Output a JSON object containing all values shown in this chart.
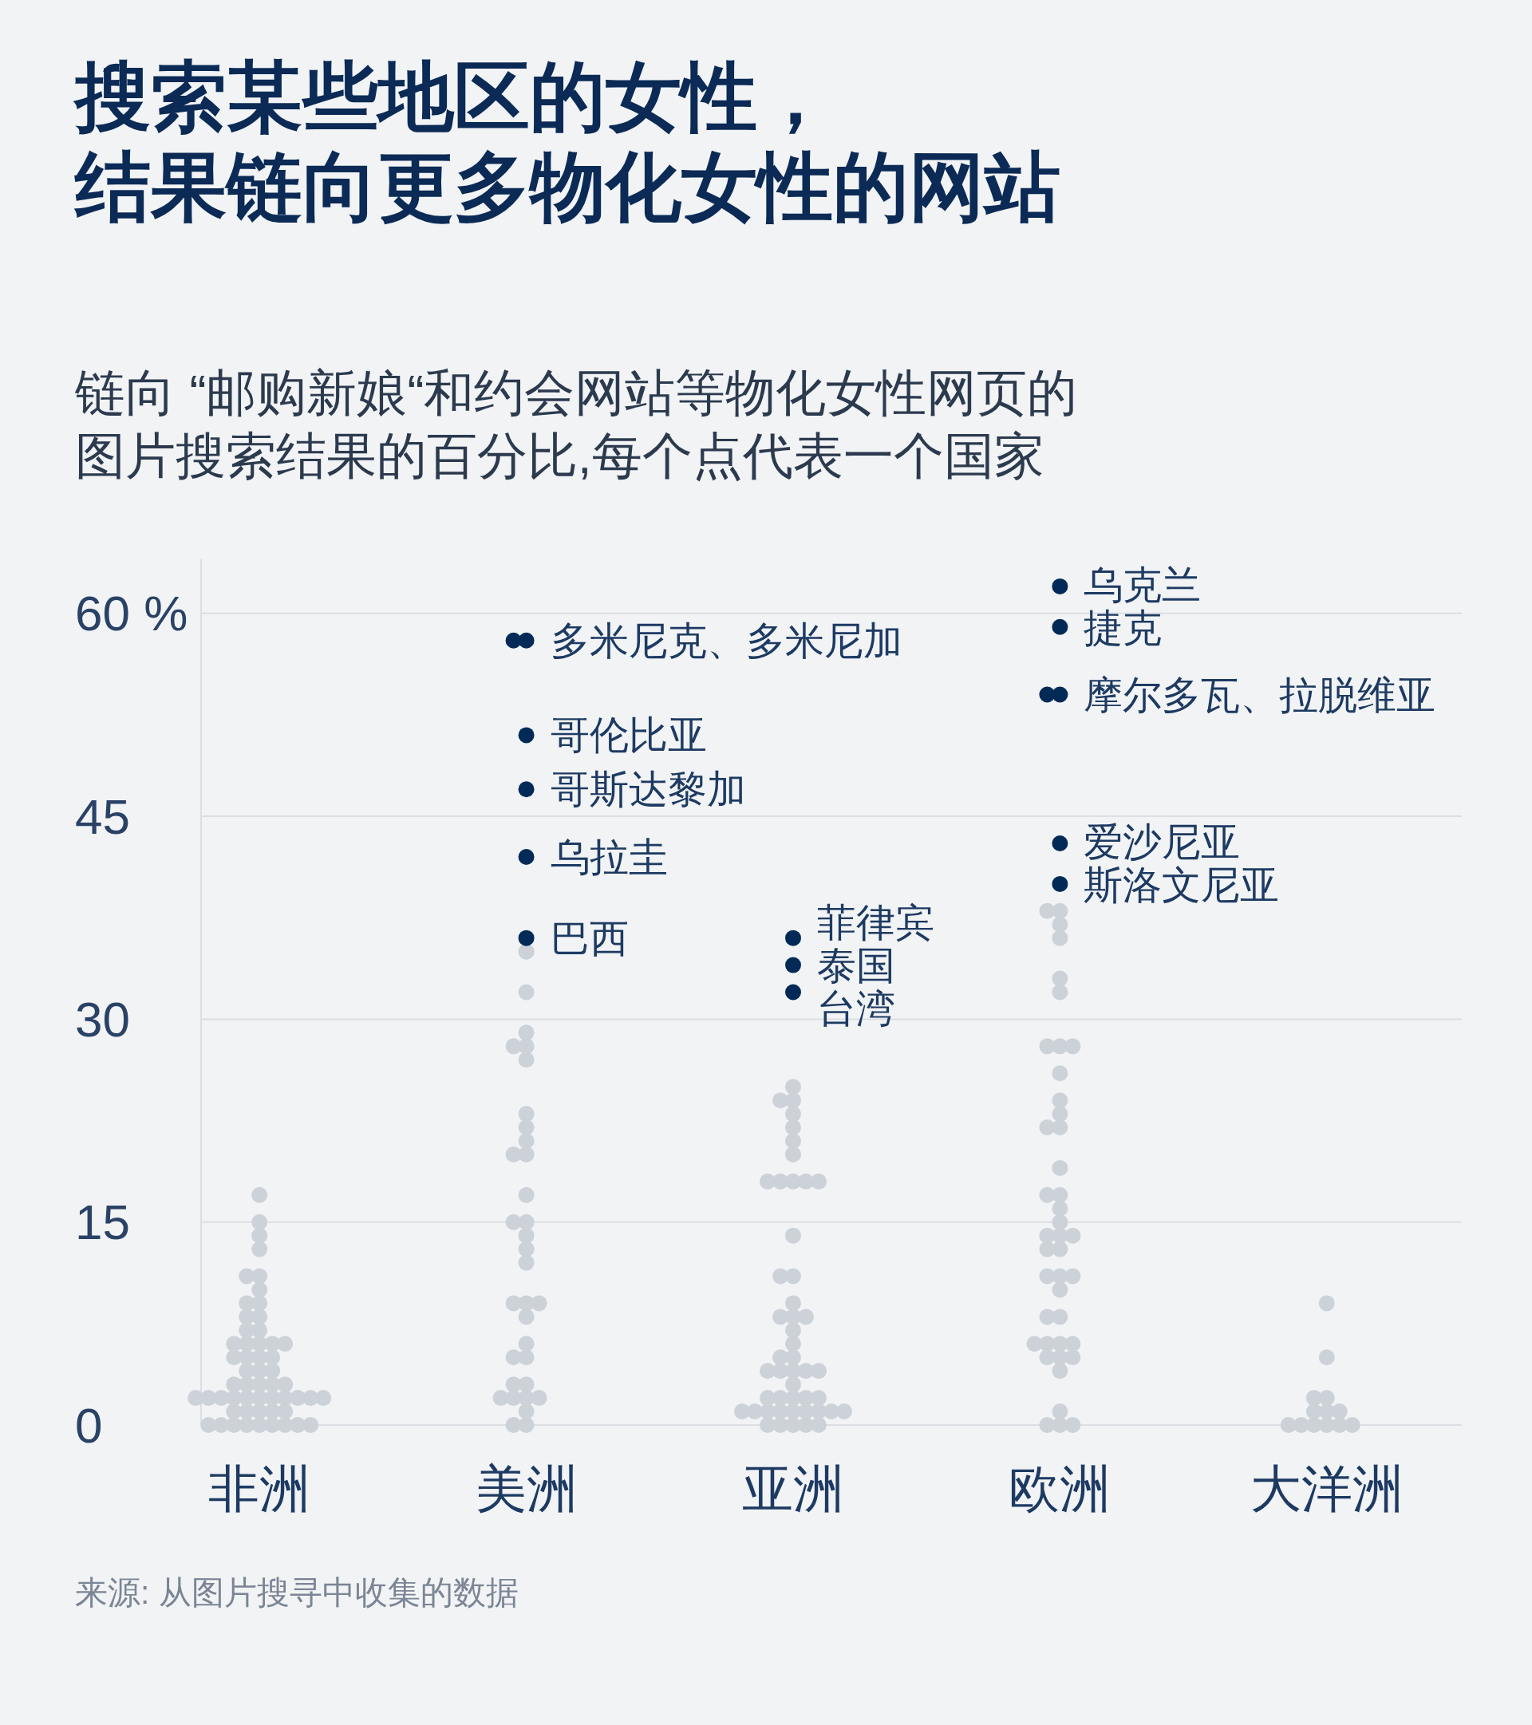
{
  "chart_data": {
    "type": "scatter",
    "title": "搜索某些地区的女性，结果链向更多物化女性的网站",
    "subtitle": "链向 “邮购新娘“和约会网站等物化女性网页的图片搜索结果的百分比,每个点代表一个国家",
    "categories": [
      "非洲",
      "美洲",
      "亚洲",
      "欧洲",
      "大洋洲"
    ],
    "series": [
      {
        "color": "#ccd2d8",
        "x": [
          "非洲",
          "非洲",
          "非洲",
          "非洲",
          "非洲",
          "非洲",
          "非洲",
          "非洲",
          "非洲",
          "非洲",
          "非洲",
          "非洲",
          "非洲",
          "非洲",
          "非洲",
          "非洲",
          "非洲",
          "非洲",
          "非洲",
          "非洲",
          "非洲",
          "非洲",
          "非洲",
          "非洲",
          "非洲",
          "非洲",
          "非洲",
          "非洲",
          "非洲",
          "非洲",
          "非洲",
          "非洲",
          "非洲",
          "非洲",
          "非洲",
          "非洲",
          "非洲",
          "非洲",
          "非洲",
          "非洲",
          "非洲",
          "非洲",
          "非洲",
          "非洲",
          "非洲",
          "非洲",
          "非洲",
          "非洲",
          "非洲",
          "非洲",
          "非洲",
          "非洲",
          "非洲",
          "非洲",
          "非洲",
          "美洲",
          "美洲",
          "美洲",
          "美洲",
          "美洲",
          "美洲",
          "美洲",
          "美洲",
          "美洲",
          "美洲",
          "美洲",
          "美洲",
          "美洲",
          "美洲",
          "美洲",
          "美洲",
          "美洲",
          "美洲",
          "美洲",
          "美洲",
          "美洲",
          "美洲",
          "美洲",
          "美洲",
          "美洲",
          "美洲",
          "美洲",
          "美洲",
          "美洲",
          "美洲",
          "美洲",
          "美洲",
          "美洲",
          "亚洲",
          "亚洲",
          "亚洲",
          "亚洲",
          "亚洲",
          "亚洲",
          "亚洲",
          "亚洲",
          "亚洲",
          "亚洲",
          "亚洲",
          "亚洲",
          "亚洲",
          "亚洲",
          "亚洲",
          "亚洲",
          "亚洲",
          "亚洲",
          "亚洲",
          "亚洲",
          "亚洲",
          "亚洲",
          "亚洲",
          "亚洲",
          "亚洲",
          "亚洲",
          "亚洲",
          "亚洲",
          "亚洲",
          "亚洲",
          "亚洲",
          "亚洲",
          "亚洲",
          "亚洲",
          "亚洲",
          "亚洲",
          "亚洲",
          "亚洲",
          "亚洲",
          "亚洲",
          "亚洲",
          "亚洲",
          "亚洲",
          "亚洲",
          "亚洲",
          "亚洲",
          "亚洲",
          "亚洲",
          "欧洲",
          "欧洲",
          "欧洲",
          "欧洲",
          "欧洲",
          "欧洲",
          "欧洲",
          "欧洲",
          "欧洲",
          "欧洲",
          "欧洲",
          "欧洲",
          "欧洲",
          "欧洲",
          "欧洲",
          "欧洲",
          "欧洲",
          "欧洲",
          "欧洲",
          "欧洲",
          "欧洲",
          "欧洲",
          "欧洲",
          "欧洲",
          "欧洲",
          "欧洲",
          "欧洲",
          "欧洲",
          "欧洲",
          "欧洲",
          "欧洲",
          "欧洲",
          "欧洲",
          "欧洲",
          "欧洲",
          "欧洲",
          "欧洲",
          "欧洲",
          "欧洲",
          "欧洲",
          "欧洲",
          "欧洲",
          "大洋洲",
          "大洋洲",
          "大洋洲",
          "大洋洲",
          "大洋洲",
          "大洋洲",
          "大洋洲",
          "大洋洲",
          "大洋洲",
          "大洋洲",
          "大洋洲",
          "大洋洲",
          "大洋洲"
        ],
        "values": [
          0,
          0,
          0,
          0,
          0,
          0,
          0,
          0,
          0,
          1,
          1,
          1,
          1,
          1,
          2,
          2,
          2,
          2,
          2,
          2,
          2,
          2,
          2,
          2,
          2,
          3,
          3,
          3,
          3,
          3,
          4,
          4,
          4,
          5,
          5,
          5,
          5,
          6,
          6,
          6,
          6,
          6,
          7,
          7,
          8,
          8,
          9,
          9,
          10,
          11,
          11,
          13,
          14,
          15,
          17,
          0,
          0,
          1,
          2,
          2,
          2,
          2,
          3,
          3,
          5,
          5,
          6,
          8,
          9,
          9,
          9,
          12,
          13,
          14,
          15,
          15,
          17,
          20,
          20,
          21,
          22,
          23,
          27,
          28,
          28,
          29,
          32,
          35,
          0,
          0,
          0,
          0,
          0,
          1,
          1,
          1,
          1,
          1,
          1,
          1,
          1,
          1,
          2,
          2,
          2,
          2,
          2,
          3,
          4,
          4,
          4,
          4,
          4,
          5,
          5,
          6,
          7,
          8,
          8,
          8,
          9,
          11,
          11,
          14,
          18,
          18,
          18,
          18,
          18,
          20,
          21,
          22,
          23,
          24,
          24,
          25,
          0,
          0,
          0,
          1,
          4,
          5,
          5,
          5,
          6,
          6,
          6,
          6,
          8,
          8,
          10,
          11,
          11,
          11,
          13,
          13,
          14,
          14,
          14,
          15,
          16,
          17,
          17,
          19,
          22,
          22,
          23,
          24,
          26,
          28,
          28,
          28,
          32,
          33,
          36,
          37,
          38,
          38,
          0,
          0,
          0,
          0,
          0,
          0,
          1,
          1,
          1,
          2,
          2,
          5,
          9
        ]
      },
      {
        "color": "#022a56",
        "x": [
          "美洲",
          "美洲",
          "美洲",
          "美洲",
          "美洲",
          "美洲",
          "亚洲",
          "亚洲",
          "亚洲",
          "欧洲",
          "欧洲",
          "欧洲",
          "欧洲",
          "欧洲",
          "欧洲"
        ],
        "values": [
          58,
          58,
          51,
          47,
          42,
          36,
          36,
          34,
          32,
          62,
          59,
          54,
          54,
          43,
          40
        ]
      }
    ],
    "ylim": [
      0,
      64
    ],
    "yticks": [
      0,
      15,
      30,
      45,
      {
        "value": 60,
        "label": "60 %"
      }
    ],
    "grid": "y",
    "marker": "circle",
    "annotations": [
      {
        "text": "多米尼克、多米尼加",
        "x": "美洲",
        "y": 58
      },
      {
        "text": "哥伦比亚",
        "x": "美洲",
        "y": 51
      },
      {
        "text": "哥斯达黎加",
        "x": "美洲",
        "y": 47
      },
      {
        "text": "乌拉圭",
        "x": "美洲",
        "y": 42
      },
      {
        "text": "巴西",
        "x": "美洲",
        "y": 36
      },
      {
        "text": "菲律宾",
        "x": "亚洲",
        "y": 36
      },
      {
        "text": "泰国",
        "x": "亚洲",
        "y": 34
      },
      {
        "text": "台湾",
        "x": "亚洲",
        "y": 32
      },
      {
        "text": "乌克兰",
        "x": "欧洲",
        "y": 62
      },
      {
        "text": "捷克",
        "x": "欧洲",
        "y": 59
      },
      {
        "text": "摩尔多瓦、拉脱维亚",
        "x": "欧洲",
        "y": 54
      },
      {
        "text": "爱沙尼亚",
        "x": "欧洲",
        "y": 43
      },
      {
        "text": "斯洛文尼亚",
        "x": "欧洲",
        "y": 40
      },
      "来源: 从图片搜寻中收集的数据"
    ]
  }
}
